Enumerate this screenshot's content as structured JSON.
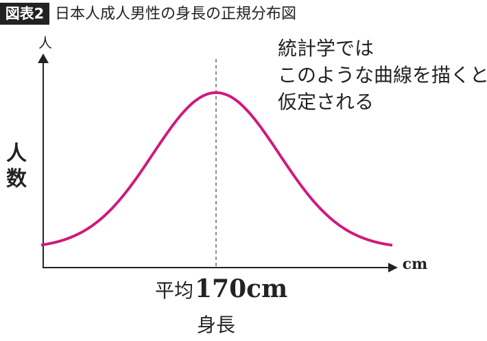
{
  "header": {
    "badge": "図表2",
    "title": "日本人成人男性の身長の正規分布図"
  },
  "axes": {
    "y_unit": "人",
    "y_label": [
      "人",
      "数"
    ],
    "x_unit": "cm",
    "x_label": "身長"
  },
  "mean": {
    "label": "平均",
    "value": "170cm"
  },
  "note": [
    "統計学では",
    "このような曲線を描くと",
    "仮定される"
  ]
}
